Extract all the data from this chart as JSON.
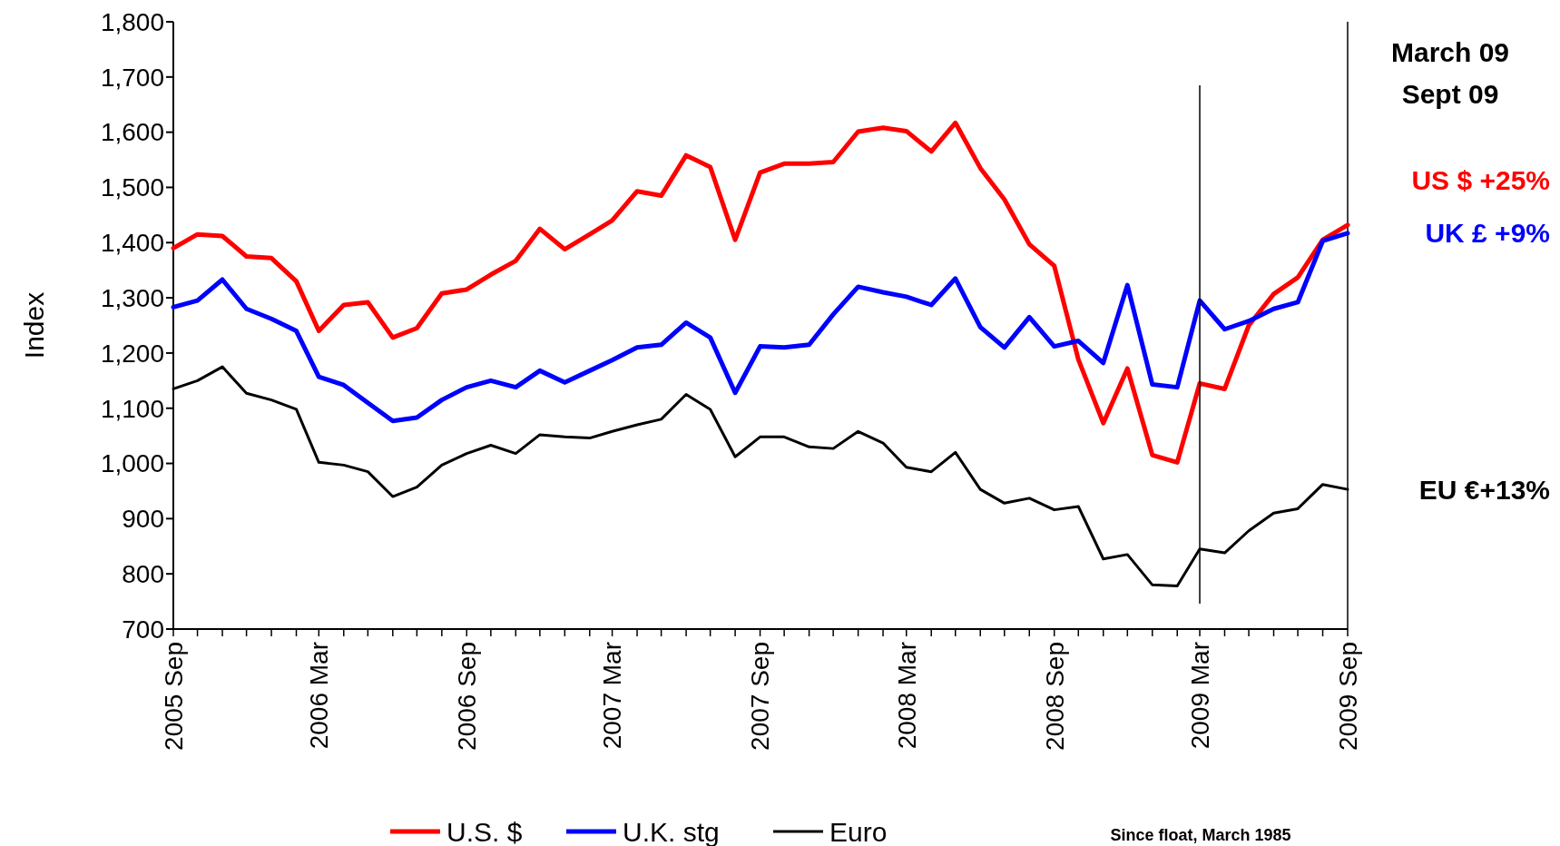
{
  "chart_data": {
    "type": "line",
    "ylabel": "Index",
    "x": [
      "2005-09",
      "2005-10",
      "2005-11",
      "2005-12",
      "2006-01",
      "2006-02",
      "2006-03",
      "2006-04",
      "2006-05",
      "2006-06",
      "2006-07",
      "2006-08",
      "2006-09",
      "2006-10",
      "2006-11",
      "2006-12",
      "2007-01",
      "2007-02",
      "2007-03",
      "2007-04",
      "2007-05",
      "2007-06",
      "2007-07",
      "2007-08",
      "2007-09",
      "2007-10",
      "2007-11",
      "2007-12",
      "2008-01",
      "2008-02",
      "2008-03",
      "2008-04",
      "2008-05",
      "2008-06",
      "2008-07",
      "2008-08",
      "2008-09",
      "2008-10",
      "2008-11",
      "2008-12",
      "2009-01",
      "2009-02",
      "2009-03",
      "2009-04",
      "2009-05",
      "2009-06",
      "2009-07",
      "2009-08",
      "2009-09"
    ],
    "series": [
      {
        "name": "U.S. $",
        "color": "#ff0000",
        "values": [
          1390,
          1415,
          1412,
          1375,
          1372,
          1330,
          1240,
          1287,
          1292,
          1228,
          1245,
          1308,
          1315,
          1342,
          1367,
          1425,
          1388,
          1415,
          1440,
          1493,
          1485,
          1558,
          1537,
          1405,
          1527,
          1543,
          1543,
          1546,
          1601,
          1608,
          1602,
          1565,
          1617,
          1535,
          1478,
          1397,
          1358,
          1188,
          1073,
          1172,
          1015,
          1002,
          1145,
          1135,
          1250,
          1307,
          1337,
          1405,
          1432
        ]
      },
      {
        "name": "U.K. stg",
        "color": "#0000ff",
        "values": [
          1283,
          1295,
          1333,
          1280,
          1262,
          1240,
          1157,
          1142,
          1110,
          1077,
          1083,
          1115,
          1138,
          1150,
          1138,
          1168,
          1147,
          1168,
          1187,
          1210,
          1215,
          1255,
          1228,
          1128,
          1212,
          1210,
          1215,
          1270,
          1320,
          1310,
          1302,
          1287,
          1335,
          1247,
          1210,
          1265,
          1212,
          1222,
          1182,
          1323,
          1143,
          1138,
          1295,
          1243,
          1258,
          1280,
          1292,
          1403,
          1417
        ]
      },
      {
        "name": "Euro",
        "color": "#000000",
        "values": [
          1135,
          1150,
          1175,
          1127,
          1115,
          1098,
          1002,
          997,
          985,
          940,
          957,
          997,
          1018,
          1033,
          1018,
          1052,
          1048,
          1046,
          1058,
          1070,
          1080,
          1125,
          1098,
          1012,
          1048,
          1048,
          1030,
          1027,
          1058,
          1037,
          993,
          985,
          1020,
          953,
          928,
          937,
          916,
          922,
          827,
          835,
          780,
          778,
          845,
          838,
          878,
          910,
          918,
          962,
          953
        ]
      }
    ],
    "xlim": [
      "2005-09",
      "2009-09"
    ],
    "xticks": [
      {
        "value": "2005-09",
        "label": "2005 Sep"
      },
      {
        "value": "2005-10",
        "label": null
      },
      {
        "value": "2005-11",
        "label": null
      },
      {
        "value": "2005-12",
        "label": null
      },
      {
        "value": "2006-01",
        "label": null
      },
      {
        "value": "2006-02",
        "label": null
      },
      {
        "value": "2006-03",
        "label": "2006 Mar"
      },
      {
        "value": "2006-04",
        "label": null
      },
      {
        "value": "2006-05",
        "label": null
      },
      {
        "value": "2006-06",
        "label": null
      },
      {
        "value": "2006-07",
        "label": null
      },
      {
        "value": "2006-08",
        "label": null
      },
      {
        "value": "2006-09",
        "label": "2006 Sep"
      },
      {
        "value": "2006-10",
        "label": null
      },
      {
        "value": "2006-11",
        "label": null
      },
      {
        "value": "2006-12",
        "label": null
      },
      {
        "value": "2007-01",
        "label": null
      },
      {
        "value": "2007-02",
        "label": null
      },
      {
        "value": "2007-03",
        "label": "2007 Mar"
      },
      {
        "value": "2007-04",
        "label": null
      },
      {
        "value": "2007-05",
        "label": null
      },
      {
        "value": "2007-06",
        "label": null
      },
      {
        "value": "2007-07",
        "label": null
      },
      {
        "value": "2007-08",
        "label": null
      },
      {
        "value": "2007-09",
        "label": "2007 Sep"
      },
      {
        "value": "2007-10",
        "label": null
      },
      {
        "value": "2007-11",
        "label": null
      },
      {
        "value": "2007-12",
        "label": null
      },
      {
        "value": "2008-01",
        "label": null
      },
      {
        "value": "2008-02",
        "label": null
      },
      {
        "value": "2008-03",
        "label": "2008 Mar"
      },
      {
        "value": "2008-04",
        "label": null
      },
      {
        "value": "2008-05",
        "label": null
      },
      {
        "value": "2008-06",
        "label": null
      },
      {
        "value": "2008-07",
        "label": null
      },
      {
        "value": "2008-08",
        "label": null
      },
      {
        "value": "2008-09",
        "label": "2008 Sep"
      },
      {
        "value": "2008-10",
        "label": null
      },
      {
        "value": "2008-11",
        "label": null
      },
      {
        "value": "2008-12",
        "label": null
      },
      {
        "value": "2009-01",
        "label": null
      },
      {
        "value": "2009-02",
        "label": null
      },
      {
        "value": "2009-03",
        "label": "2009 Mar"
      },
      {
        "value": "2009-04",
        "label": null
      },
      {
        "value": "2009-05",
        "label": null
      },
      {
        "value": "2009-06",
        "label": null
      },
      {
        "value": "2009-07",
        "label": null
      },
      {
        "value": "2009-08",
        "label": null
      },
      {
        "value": "2009-09",
        "label": "2009 Sep"
      }
    ],
    "ylim": [
      700,
      1800
    ],
    "yticks": [
      {
        "value": 700,
        "label": "700"
      },
      {
        "value": 800,
        "label": "800"
      },
      {
        "value": 900,
        "label": "900"
      },
      {
        "value": 1000,
        "label": "1,000"
      },
      {
        "value": 1100,
        "label": "1,100"
      },
      {
        "value": 1200,
        "label": "1,200"
      },
      {
        "value": 1300,
        "label": "1,300"
      },
      {
        "value": 1400,
        "label": "1,400"
      },
      {
        "value": 1500,
        "label": "1,500"
      },
      {
        "value": 1600,
        "label": "1,600"
      },
      {
        "value": 1700,
        "label": "1,700"
      },
      {
        "value": 1800,
        "label": "1,800"
      }
    ],
    "ref_lines": [
      {
        "axis": "x",
        "value": "2009-03",
        "color": "#000000"
      }
    ],
    "annotations": [
      "March 09",
      "Sept 09",
      {
        "text": "US $ +25%",
        "x": "2009-09",
        "y": 1432
      },
      {
        "text": "UK £ +9%",
        "x": "2009-09",
        "y": 1417
      },
      {
        "text": "EU €+13%",
        "x": "2009-09",
        "y": 953
      },
      "Since float, March 1985"
    ],
    "legend": "bottom",
    "grid": false,
    "marker": "none",
    "line_style": "solid"
  }
}
